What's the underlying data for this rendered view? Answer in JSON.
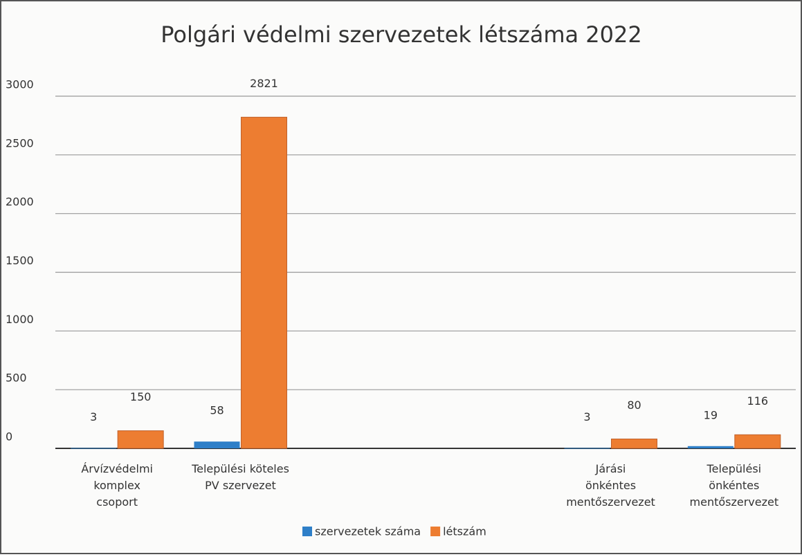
{
  "chart_data": {
    "type": "bar",
    "title": "Polgári védelmi szervezetek létszáma 2022",
    "categories": [
      "Árvízvédelmi komplex csoport",
      "Települési köteles PV szervezet",
      null,
      null,
      "Járási önkéntes mentőszervezet",
      "Települési önkéntes mentőszervezet"
    ],
    "series": [
      {
        "name": "szervezetek száma",
        "color": "#2e7fc8",
        "values": [
          3,
          58,
          null,
          null,
          3,
          19
        ]
      },
      {
        "name": "létszám",
        "color": "#ed7d31",
        "values": [
          150,
          2821,
          null,
          null,
          80,
          116
        ]
      }
    ],
    "ylim": [
      0,
      3000
    ],
    "yticks": [
      0,
      500,
      1000,
      1500,
      2000,
      2500,
      3000
    ],
    "grid": true,
    "legend": "bottom"
  }
}
